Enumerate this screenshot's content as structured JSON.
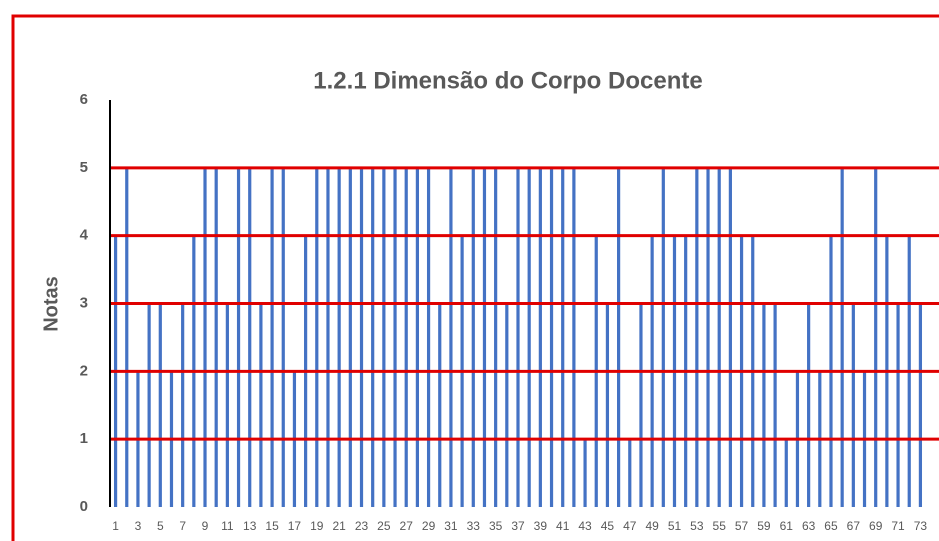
{
  "chart_data": {
    "type": "bar",
    "title": "1.2.1 Dimensão do Corpo Docente",
    "y_label": "Notas",
    "categories": [
      1,
      null,
      3,
      null,
      5,
      null,
      7,
      null,
      9,
      null,
      11,
      null,
      13,
      null,
      15,
      null,
      17,
      null,
      19,
      null,
      21,
      null,
      23,
      null,
      25,
      null,
      27,
      null,
      29,
      null,
      31,
      null,
      33,
      null,
      35,
      null,
      37,
      null,
      39,
      null,
      41,
      null,
      43,
      null,
      45,
      null,
      47,
      null,
      49,
      null,
      51,
      null,
      53,
      null,
      55,
      null,
      57,
      null,
      59,
      null,
      61,
      null,
      63,
      null,
      65,
      null,
      67,
      null,
      69,
      null,
      71,
      null,
      73
    ],
    "values": [
      4,
      5,
      2,
      3,
      3,
      2,
      3,
      4,
      5,
      5,
      3,
      5,
      5,
      3,
      5,
      5,
      2,
      4,
      5,
      5,
      5,
      5,
      5,
      5,
      5,
      5,
      5,
      5,
      5,
      3,
      5,
      4,
      5,
      5,
      5,
      3,
      5,
      5,
      5,
      5,
      5,
      5,
      1,
      4,
      3,
      5,
      1,
      3,
      4,
      5,
      4,
      4,
      5,
      5,
      5,
      5,
      4,
      4,
      3,
      3,
      1,
      2,
      3,
      2,
      4,
      5,
      3,
      2,
      5,
      4,
      3,
      4,
      3
    ],
    "color": "#4472c4",
    "grid_color": "#e00000",
    "ylim": [
      0,
      6
    ],
    "yticks": [
      0,
      1,
      2,
      3,
      4,
      5,
      6
    ],
    "grid": true
  }
}
